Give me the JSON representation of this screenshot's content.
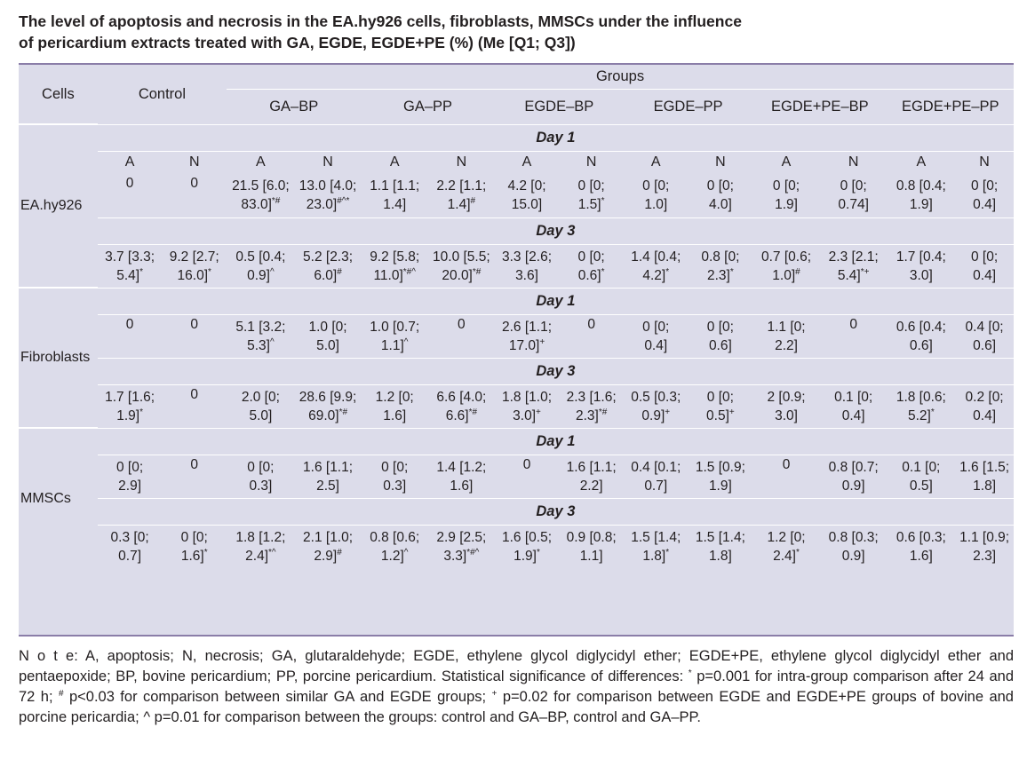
{
  "title": {
    "line1": "The level of apoptosis and necrosis in the EA.hy926 cells, fibroblasts, MMSCs under the influence",
    "line2": "of pericardium extracts treated with GA, EGDE, EGDE+PE (%) (Me [Q1; Q3])"
  },
  "header": {
    "cells": "Cells",
    "control": "Control",
    "groups": "Groups",
    "group_names": [
      "GA–BP",
      "GA–PP",
      "EGDE–BP",
      "EGDE–PP",
      "EGDE+PE–BP",
      "EGDE+PE–PP"
    ]
  },
  "an": {
    "a": "A",
    "n": "N"
  },
  "days": {
    "d1": "Day 1",
    "d3": "Day 3"
  },
  "sections": [
    {
      "name": "EA.hy926",
      "day1": [
        [
          "0",
          ""
        ],
        [
          "0",
          ""
        ],
        [
          "21.5 [6.0;",
          "83.0]*#"
        ],
        [
          "13.0 [4.0;",
          "23.0]#^*"
        ],
        [
          "1.1 [1.1;",
          "1.4]"
        ],
        [
          "2.2 [1.1;",
          "1.4]#"
        ],
        [
          "4.2 [0;",
          "15.0]"
        ],
        [
          "0 [0;",
          "1.5]*"
        ],
        [
          "0 [0;",
          "1.0]"
        ],
        [
          "0 [0;",
          "4.0]"
        ],
        [
          "0 [0;",
          "1.9]"
        ],
        [
          "0 [0;",
          "0.74]"
        ],
        [
          "0.8 [0.4;",
          "1.9]"
        ],
        [
          "0 [0;",
          "0.4]"
        ]
      ],
      "day3": [
        [
          "3.7 [3.3;",
          "5.4]*"
        ],
        [
          "9.2 [2.7;",
          "16.0]*"
        ],
        [
          "0.5 [0.4;",
          "0.9]^"
        ],
        [
          "5.2 [2.3;",
          "6.0]#"
        ],
        [
          "9.2 [5.8;",
          "11.0]*#^"
        ],
        [
          "10.0 [5.5;",
          "20.0]*#"
        ],
        [
          "3.3 [2.6;",
          "3.6]"
        ],
        [
          "0 [0;",
          "0.6]*"
        ],
        [
          "1.4 [0.4;",
          "4.2]*"
        ],
        [
          "0.8 [0;",
          "2.3]*"
        ],
        [
          "0.7 [0.6;",
          "1.0]#"
        ],
        [
          "2.3 [2.1;",
          "5.4]*+"
        ],
        [
          "1.7 [0.4;",
          "3.0]"
        ],
        [
          "0 [0;",
          "0.4]"
        ]
      ]
    },
    {
      "name": "Fibroblasts",
      "day1": [
        [
          "0",
          ""
        ],
        [
          "0",
          ""
        ],
        [
          "5.1 [3.2;",
          "5.3]^"
        ],
        [
          "1.0 [0;",
          "5.0]"
        ],
        [
          "1.0 [0.7;",
          "1.1]^"
        ],
        [
          "0",
          ""
        ],
        [
          "2.6 [1.1;",
          "17.0]+"
        ],
        [
          "0",
          ""
        ],
        [
          "0 [0;",
          "0.4]"
        ],
        [
          "0 [0;",
          "0.6]"
        ],
        [
          "1.1 [0;",
          "2.2]"
        ],
        [
          "0",
          ""
        ],
        [
          "0.6 [0.4;",
          "0.6]"
        ],
        [
          "0.4 [0;",
          "0.6]"
        ]
      ],
      "day3": [
        [
          "1.7 [1.6;",
          "1.9]*"
        ],
        [
          "0",
          ""
        ],
        [
          "2.0 [0;",
          "5.0]"
        ],
        [
          "28.6 [9.9;",
          "69.0]*#"
        ],
        [
          "1.2 [0;",
          "1.6]"
        ],
        [
          "6.6 [4.0;",
          "6.6]*#"
        ],
        [
          "1.8 [1.0;",
          "3.0]+"
        ],
        [
          "2.3 [1.6;",
          "2.3]*#"
        ],
        [
          "0.5 [0.3;",
          "0.9]+"
        ],
        [
          "0 [0;",
          "0.5]+"
        ],
        [
          "2 [0.9;",
          "3.0]"
        ],
        [
          "0.1 [0;",
          "0.4]"
        ],
        [
          "1.8 [0.6;",
          "5.2]*"
        ],
        [
          "0.2 [0;",
          "0.4]"
        ]
      ]
    },
    {
      "name": "MMSCs",
      "day1": [
        [
          "0 [0;",
          "2.9]"
        ],
        [
          "0",
          ""
        ],
        [
          "0 [0;",
          "0.3]"
        ],
        [
          "1.6 [1.1;",
          "2.5]"
        ],
        [
          "0 [0;",
          "0.3]"
        ],
        [
          "1.4 [1.2;",
          "1.6]"
        ],
        [
          "0",
          ""
        ],
        [
          "1.6 [1.1;",
          "2.2]"
        ],
        [
          "0.4 [0.1;",
          "0.7]"
        ],
        [
          "1.5 [0.9;",
          "1.9]"
        ],
        [
          "0",
          ""
        ],
        [
          "0.8 [0.7;",
          "0.9]"
        ],
        [
          "0.1 [0;",
          "0.5]"
        ],
        [
          "1.6 [1.5;",
          "1.8]"
        ]
      ],
      "day3": [
        [
          "0.3 [0;",
          "0.7]"
        ],
        [
          "0 [0;",
          "1.6]*"
        ],
        [
          "1.8 [1.2;",
          "2.4]*^"
        ],
        [
          "2.1 [1.0;",
          "2.9]#"
        ],
        [
          "0.8 [0.6;",
          "1.2]^"
        ],
        [
          "2.9 [2.5;",
          "3.3]*#^"
        ],
        [
          "1.6 [0.5;",
          "1.9]*"
        ],
        [
          "0.9 [0.8;",
          "1.1]"
        ],
        [
          "1.5 [1.4;",
          "1.8]*"
        ],
        [
          "1.5 [1.4;",
          "1.8]"
        ],
        [
          "1.2 [0;",
          "2.4]*"
        ],
        [
          "0.8 [0.3;",
          "0.9]"
        ],
        [
          "0.6 [0.3;",
          "1.6]"
        ],
        [
          "1.1 [0.9;",
          "2.3]"
        ]
      ]
    }
  ],
  "note": {
    "lead": "N o t e",
    "text1": ": A, apoptosis; N, necrosis; GA, glutaraldehyde; EGDE, ethylene glycol diglycidyl ether; EGDE+PE, ethylene glycol diglycidyl ether and pentaepoxide; BP, bovine pericardium; PP, porcine pericardium. Statistical significance of differences: ",
    "sym1": "*",
    "text2": " p=0.001 for intra-group comparison after 24 and 72 h; ",
    "sym2": "#",
    "text3": " p<0.03 for comparison between similar GA and EGDE groups; ",
    "sym3": "+",
    "text4": " p=0.02 for comparison between EGDE and EGDE+PE groups of bovine and porcine pericardia; ^ p=0.01 for comparison between the groups: control and GA–BP, control and GA–PP."
  }
}
